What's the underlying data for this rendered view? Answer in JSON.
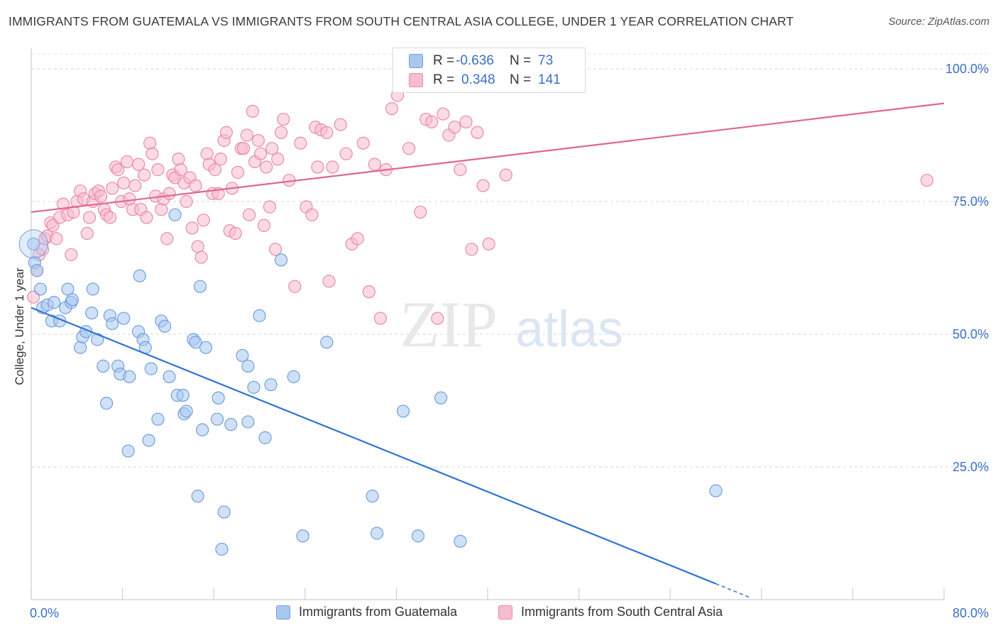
{
  "title": "IMMIGRANTS FROM GUATEMALA VS IMMIGRANTS FROM SOUTH CENTRAL ASIA COLLEGE, UNDER 1 YEAR CORRELATION CHART",
  "source": "Source: ZipAtlas.com",
  "watermark": {
    "zip": "ZIP",
    "atlas": "atlas"
  },
  "legend_top": {
    "rows": [
      {
        "r_label": "R =",
        "r_value": "-0.636",
        "n_label": "N =",
        "n_value": "73",
        "color": "#a9c8f0",
        "border": "#6f9fdd"
      },
      {
        "r_label": "R =",
        "r_value": "0.348",
        "n_label": "N =",
        "n_value": "141",
        "color": "#f7bcd0",
        "border": "#e88aaa"
      }
    ]
  },
  "legend_bottom": [
    {
      "label": "Immigrants from Guatemala",
      "color": "#a9c8f0",
      "border": "#6f9fdd"
    },
    {
      "label": "Immigrants from South Central Asia",
      "color": "#f7bcd0",
      "border": "#e88aaa"
    }
  ],
  "chart_data": {
    "type": "scatter",
    "title": "IMMIGRANTS FROM GUATEMALA VS IMMIGRANTS FROM SOUTH CENTRAL ASIA COLLEGE, UNDER 1 YEAR CORRELATION CHART",
    "xlabel": "",
    "ylabel": "College, Under 1 year",
    "xlim": [
      0,
      80
    ],
    "ylim": [
      0,
      100
    ],
    "x_tick_labels": [
      "0.0%",
      "80.0%"
    ],
    "y_tick_labels": [
      "100.0%",
      "75.0%",
      "50.0%",
      "25.0%"
    ],
    "y_tick_values": [
      100,
      75,
      50,
      25
    ],
    "grid": "horizontal dashed",
    "legend": "top-center",
    "series": [
      {
        "name": "Immigrants from Guatemala",
        "color": "#6f9fdd",
        "fill": "#a9c8f0",
        "trend": {
          "x0": 0.0,
          "y0": 55.0,
          "x1": 60.0,
          "y1": 3.0,
          "dashed_to_x": 63.0
        },
        "points": [
          [
            0.2,
            67.0
          ],
          [
            0.3,
            63.5
          ],
          [
            0.5,
            62.0
          ],
          [
            0.8,
            58.5
          ],
          [
            1.0,
            55.0
          ],
          [
            1.4,
            55.5
          ],
          [
            1.8,
            52.5
          ],
          [
            2.0,
            56.0
          ],
          [
            2.5,
            52.5
          ],
          [
            3.0,
            55.0
          ],
          [
            3.2,
            58.5
          ],
          [
            3.5,
            56.0
          ],
          [
            3.6,
            56.5
          ],
          [
            4.3,
            47.5
          ],
          [
            4.5,
            49.5
          ],
          [
            4.8,
            50.5
          ],
          [
            5.3,
            54.0
          ],
          [
            5.4,
            58.5
          ],
          [
            5.8,
            49.0
          ],
          [
            6.3,
            44.0
          ],
          [
            6.6,
            37.0
          ],
          [
            6.9,
            53.5
          ],
          [
            7.1,
            52.0
          ],
          [
            7.6,
            44.0
          ],
          [
            7.8,
            42.5
          ],
          [
            8.1,
            53.0
          ],
          [
            8.5,
            28.0
          ],
          [
            8.6,
            42.0
          ],
          [
            9.5,
            61.0
          ],
          [
            9.4,
            50.5
          ],
          [
            9.8,
            49.0
          ],
          [
            10.0,
            47.5
          ],
          [
            10.3,
            30.0
          ],
          [
            10.5,
            43.5
          ],
          [
            11.1,
            34.0
          ],
          [
            11.4,
            52.5
          ],
          [
            11.7,
            51.5
          ],
          [
            12.1,
            42.0
          ],
          [
            12.6,
            72.5
          ],
          [
            12.8,
            38.5
          ],
          [
            13.3,
            38.5
          ],
          [
            13.4,
            35.0
          ],
          [
            13.6,
            35.5
          ],
          [
            14.2,
            49.0
          ],
          [
            14.4,
            48.5
          ],
          [
            14.6,
            19.5
          ],
          [
            14.8,
            59.0
          ],
          [
            15.0,
            32.0
          ],
          [
            15.3,
            47.5
          ],
          [
            16.3,
            34.0
          ],
          [
            16.4,
            38.0
          ],
          [
            16.7,
            9.5
          ],
          [
            16.9,
            16.5
          ],
          [
            17.5,
            33.0
          ],
          [
            18.5,
            46.0
          ],
          [
            19.0,
            44.0
          ],
          [
            19.0,
            33.5
          ],
          [
            19.5,
            40.0
          ],
          [
            20.0,
            53.5
          ],
          [
            20.5,
            30.5
          ],
          [
            21.0,
            40.5
          ],
          [
            21.9,
            64.0
          ],
          [
            23.0,
            42.0
          ],
          [
            23.8,
            12.0
          ],
          [
            25.9,
            48.5
          ],
          [
            29.9,
            19.5
          ],
          [
            30.3,
            12.5
          ],
          [
            32.6,
            35.5
          ],
          [
            33.9,
            12.0
          ],
          [
            35.9,
            38.0
          ],
          [
            37.6,
            11.0
          ],
          [
            60.0,
            20.5
          ]
        ]
      },
      {
        "name": "Immigrants from South Central Asia",
        "color": "#e88aaa",
        "fill": "#f7bcd0",
        "trend": {
          "x0": 0.0,
          "y0": 73.0,
          "x1": 80.0,
          "y1": 93.5
        },
        "points": [
          [
            0.2,
            57.0
          ],
          [
            0.5,
            62.0
          ],
          [
            0.7,
            65.0
          ],
          [
            1.0,
            66.0
          ],
          [
            1.2,
            68.0
          ],
          [
            1.4,
            68.5
          ],
          [
            1.7,
            71.0
          ],
          [
            1.9,
            70.5
          ],
          [
            2.2,
            68.0
          ],
          [
            2.5,
            72.0
          ],
          [
            2.8,
            74.5
          ],
          [
            3.2,
            72.5
          ],
          [
            3.5,
            65.0
          ],
          [
            3.7,
            73.0
          ],
          [
            4.0,
            75.0
          ],
          [
            4.3,
            77.0
          ],
          [
            4.6,
            75.5
          ],
          [
            4.9,
            69.0
          ],
          [
            5.1,
            72.0
          ],
          [
            5.4,
            75.0
          ],
          [
            5.6,
            76.5
          ],
          [
            5.9,
            77.0
          ],
          [
            6.1,
            76.0
          ],
          [
            6.4,
            73.5
          ],
          [
            6.6,
            72.5
          ],
          [
            6.9,
            72.0
          ],
          [
            7.1,
            77.5
          ],
          [
            7.4,
            81.5
          ],
          [
            7.6,
            81.0
          ],
          [
            7.9,
            75.0
          ],
          [
            8.1,
            78.5
          ],
          [
            8.4,
            82.5
          ],
          [
            8.6,
            75.5
          ],
          [
            8.9,
            73.5
          ],
          [
            9.1,
            78.0
          ],
          [
            9.4,
            82.0
          ],
          [
            9.6,
            73.5
          ],
          [
            9.9,
            80.0
          ],
          [
            10.1,
            72.0
          ],
          [
            10.4,
            86.0
          ],
          [
            10.6,
            84.0
          ],
          [
            10.9,
            76.0
          ],
          [
            11.1,
            81.0
          ],
          [
            11.4,
            73.5
          ],
          [
            11.6,
            75.5
          ],
          [
            11.9,
            68.0
          ],
          [
            12.1,
            76.5
          ],
          [
            12.4,
            80.0
          ],
          [
            12.6,
            79.5
          ],
          [
            12.9,
            83.0
          ],
          [
            13.1,
            81.0
          ],
          [
            13.4,
            78.5
          ],
          [
            13.6,
            75.0
          ],
          [
            13.9,
            79.5
          ],
          [
            14.1,
            70.0
          ],
          [
            14.4,
            78.0
          ],
          [
            14.6,
            66.5
          ],
          [
            14.9,
            64.5
          ],
          [
            15.1,
            71.5
          ],
          [
            15.4,
            84.0
          ],
          [
            15.6,
            82.0
          ],
          [
            15.9,
            76.5
          ],
          [
            16.1,
            81.0
          ],
          [
            16.4,
            76.5
          ],
          [
            16.6,
            83.0
          ],
          [
            16.9,
            86.5
          ],
          [
            17.1,
            88.0
          ],
          [
            17.4,
            69.5
          ],
          [
            17.6,
            77.5
          ],
          [
            17.9,
            69.0
          ],
          [
            18.1,
            80.5
          ],
          [
            18.4,
            85.0
          ],
          [
            18.6,
            85.0
          ],
          [
            18.9,
            87.5
          ],
          [
            19.1,
            72.5
          ],
          [
            19.4,
            92.0
          ],
          [
            19.6,
            82.5
          ],
          [
            19.9,
            86.5
          ],
          [
            20.1,
            84.0
          ],
          [
            20.4,
            70.5
          ],
          [
            20.6,
            81.5
          ],
          [
            20.9,
            74.0
          ],
          [
            21.1,
            85.0
          ],
          [
            21.4,
            66.0
          ],
          [
            21.6,
            83.0
          ],
          [
            21.9,
            88.0
          ],
          [
            22.1,
            90.5
          ],
          [
            22.6,
            79.0
          ],
          [
            23.1,
            59.0
          ],
          [
            23.6,
            86.0
          ],
          [
            24.1,
            74.0
          ],
          [
            24.6,
            72.5
          ],
          [
            24.9,
            89.0
          ],
          [
            25.1,
            81.5
          ],
          [
            25.4,
            88.5
          ],
          [
            25.9,
            88.0
          ],
          [
            26.4,
            81.5
          ],
          [
            26.1,
            60.0
          ],
          [
            27.1,
            89.5
          ],
          [
            27.6,
            84.0
          ],
          [
            28.1,
            67.0
          ],
          [
            28.6,
            68.0
          ],
          [
            29.1,
            86.0
          ],
          [
            29.6,
            58.0
          ],
          [
            30.1,
            82.0
          ],
          [
            30.6,
            53.0
          ],
          [
            31.1,
            81.0
          ],
          [
            31.6,
            92.5
          ],
          [
            32.1,
            95.0
          ],
          [
            33.1,
            85.0
          ],
          [
            34.1,
            73.0
          ],
          [
            34.6,
            90.5
          ],
          [
            35.1,
            90.0
          ],
          [
            35.6,
            53.0
          ],
          [
            36.1,
            91.5
          ],
          [
            36.6,
            87.5
          ],
          [
            37.1,
            89.0
          ],
          [
            37.6,
            81.0
          ],
          [
            38.1,
            90.0
          ],
          [
            38.6,
            66.0
          ],
          [
            39.1,
            88.0
          ],
          [
            39.6,
            78.0
          ],
          [
            40.1,
            67.0
          ],
          [
            41.6,
            80.0
          ],
          [
            78.5,
            79.0
          ]
        ]
      }
    ]
  }
}
